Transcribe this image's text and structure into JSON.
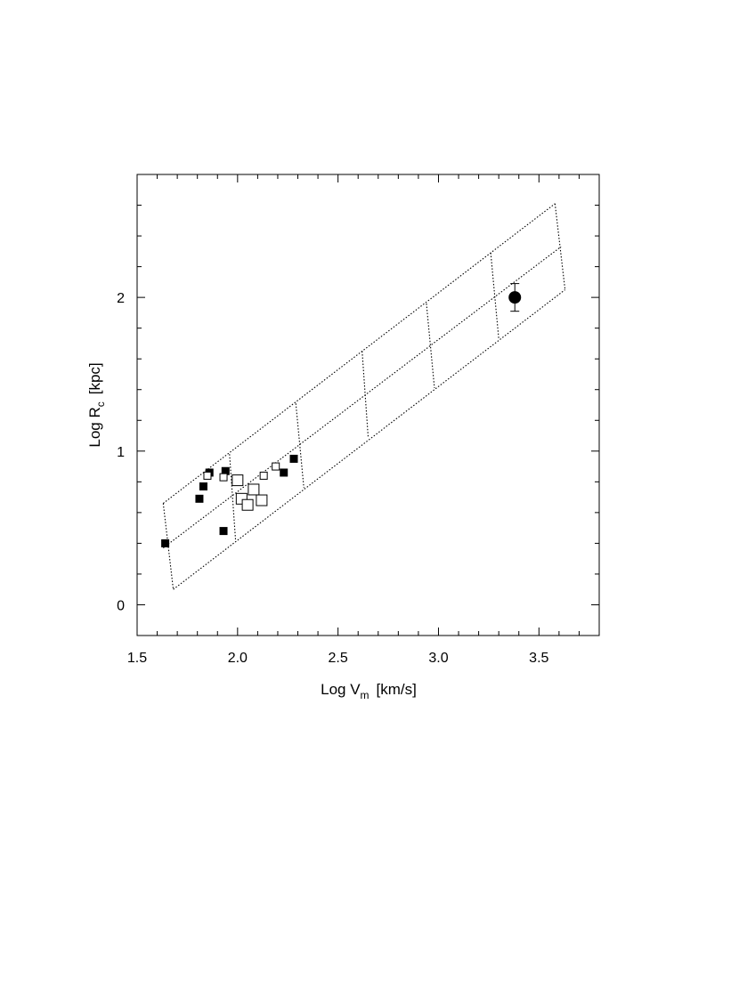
{
  "chart_data": {
    "type": "scatter",
    "xlabel": "Log V",
    "xlabel_sub": "m",
    "xlabel_unit": "[km/s]",
    "ylabel": "Log R",
    "ylabel_sub": "c",
    "ylabel_unit": "[kpc]",
    "xlim": [
      1.5,
      3.8
    ],
    "ylim": [
      -0.2,
      2.8
    ],
    "xticks": [
      "1.5",
      "2.0",
      "2.5",
      "3.0",
      "3.5"
    ],
    "yticks": [
      "0",
      "1",
      "2"
    ],
    "grid": false,
    "series": [
      {
        "marker": "filled-square",
        "points": [
          {
            "x": 1.64,
            "y": 0.4
          },
          {
            "x": 1.81,
            "y": 0.69
          },
          {
            "x": 1.83,
            "y": 0.77
          },
          {
            "x": 1.86,
            "y": 0.86
          },
          {
            "x": 1.93,
            "y": 0.48
          },
          {
            "x": 1.94,
            "y": 0.87
          },
          {
            "x": 2.23,
            "y": 0.86
          },
          {
            "x": 2.28,
            "y": 0.95
          }
        ]
      },
      {
        "marker": "open-square-small",
        "points": [
          {
            "x": 1.85,
            "y": 0.84
          },
          {
            "x": 1.93,
            "y": 0.83
          },
          {
            "x": 2.13,
            "y": 0.84
          },
          {
            "x": 2.19,
            "y": 0.9
          }
        ]
      },
      {
        "marker": "open-square-large",
        "points": [
          {
            "x": 2.0,
            "y": 0.81
          },
          {
            "x": 2.02,
            "y": 0.69
          },
          {
            "x": 2.05,
            "y": 0.65
          },
          {
            "x": 2.08,
            "y": 0.75
          },
          {
            "x": 2.12,
            "y": 0.68
          }
        ]
      },
      {
        "marker": "filled-circle",
        "points": [
          {
            "x": 3.38,
            "y": 2.0,
            "yerr_low": 1.91,
            "yerr_high": 2.09
          }
        ]
      }
    ],
    "model_grid": {
      "style": "dotted",
      "lines": [
        [
          [
            1.63,
            0.66
          ],
          [
            3.58,
            2.61
          ]
        ],
        [
          [
            1.63,
            0.37
          ],
          [
            3.61,
            2.33
          ]
        ],
        [
          [
            1.68,
            0.1
          ],
          [
            3.63,
            2.05
          ]
        ],
        [
          [
            1.63,
            0.66
          ],
          [
            1.68,
            0.1
          ]
        ],
        [
          [
            1.96,
            0.98
          ],
          [
            1.99,
            0.42
          ]
        ],
        [
          [
            2.29,
            1.31
          ],
          [
            2.33,
            0.76
          ]
        ],
        [
          [
            2.62,
            1.65
          ],
          [
            2.65,
            1.09
          ]
        ],
        [
          [
            2.94,
            1.96
          ],
          [
            2.98,
            1.41
          ]
        ],
        [
          [
            3.26,
            2.29
          ],
          [
            3.3,
            1.73
          ]
        ],
        [
          [
            3.58,
            2.61
          ],
          [
            3.63,
            2.05
          ]
        ]
      ]
    }
  }
}
